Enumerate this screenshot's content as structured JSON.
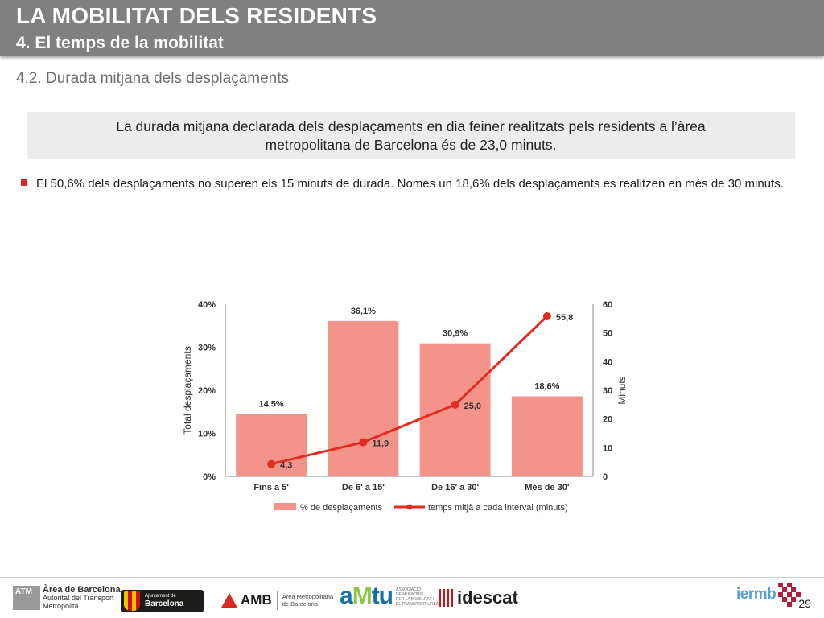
{
  "header": {
    "title": "LA MOBILITAT DELS RESIDENTS",
    "subtitle": "4. El temps de la mobilitat"
  },
  "section": {
    "title": "4.2. Durada mitjana dels desplaçaments"
  },
  "highlight": {
    "text": "La durada mitjana declarada dels desplaçaments en dia feiner realitzats pels residents a l’àrea metropolitana de Barcelona és de 23,0 minuts."
  },
  "bullet": {
    "text": "El 50,6% dels desplaçaments no superen els 15 minuts de durada. Només un 18,6% dels desplaçaments es realitzen en més de 30 minuts."
  },
  "chart_data": {
    "type": "bar",
    "categories": [
      "Fins a 5'",
      "De 6' a 15'",
      "De 16' a 30'",
      "Més de 30'"
    ],
    "series": [
      {
        "name": "% de desplaçaments",
        "type": "bar",
        "axis": "left",
        "values": [
          14.5,
          36.1,
          30.9,
          18.6
        ],
        "labels": [
          "14,5%",
          "36,1%",
          "30,9%",
          "18,6%"
        ],
        "color": "#f4938a"
      },
      {
        "name": "temps mitjà a cada interval (minuts)",
        "type": "line",
        "axis": "right",
        "values": [
          4.3,
          11.9,
          25.0,
          55.8
        ],
        "labels": [
          "4,3",
          "11,9",
          "25,0",
          "55,8"
        ],
        "color": "#e42b20"
      }
    ],
    "ylabel": "Total desplaçaments",
    "y2label": "Minuts",
    "ylim": [
      0,
      40
    ],
    "y2lim": [
      0,
      60
    ],
    "yticks": [
      "0%",
      "10%",
      "20%",
      "30%",
      "40%"
    ],
    "y2ticks": [
      "0",
      "10",
      "20",
      "30",
      "40",
      "50",
      "60"
    ],
    "legend": "bottom",
    "grid": false
  },
  "footer": {
    "atm_badge": "ATM",
    "atm_line1": "Àrea de Barcelona",
    "atm_line2": "Autoritat del Transport",
    "atm_line3": "Metropolità",
    "ajuntament_small": "Ajuntament de",
    "ajuntament_big": "Barcelona",
    "amb_word": "AMB",
    "amb_desc_1": "Àrea Metropolitana",
    "amb_desc_2": "de Barcelona",
    "amtu_a": "a",
    "amtu_m": "M",
    "amtu_rest": "tu",
    "amtu_desc_1": "ASSOCIACIÓ",
    "amtu_desc_2": "DE MUNICIPIS",
    "amtu_desc_3": "PER LA MOBILITAT I",
    "amtu_desc_4": "EL TRANSPORT URBÀ",
    "idescat_word": "idescat",
    "iermb_word": "iermb",
    "page_number": "29"
  },
  "colors": {
    "header_bg": "#808080",
    "accent_red": "#d62b25",
    "bar_fill": "#f4938a",
    "line_color": "#e42b20"
  }
}
